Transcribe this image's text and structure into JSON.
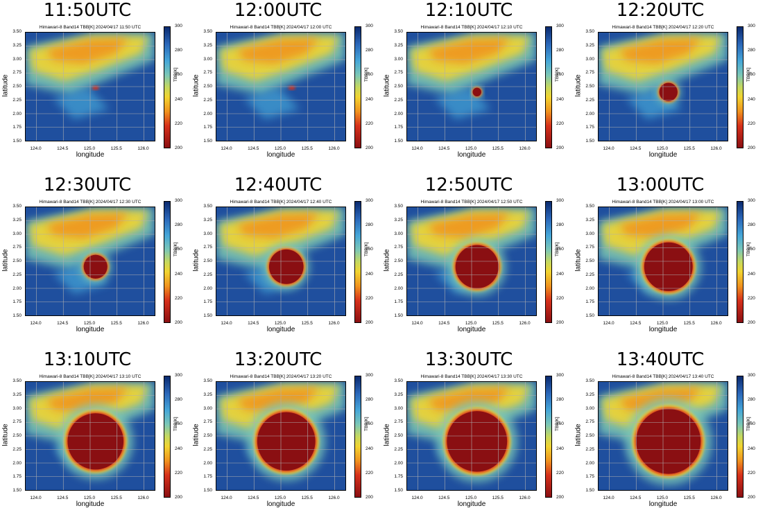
{
  "common": {
    "ylabel": "latitude",
    "xlabel": "longitude",
    "cbar_label": "TBB[K]",
    "xticks": [
      "124.0",
      "124.5",
      "125.0",
      "125.5",
      "126.0"
    ],
    "yticks": [
      "3.50",
      "3.25",
      "3.00",
      "2.75",
      "2.50",
      "2.25",
      "2.00",
      "1.75",
      "1.50"
    ],
    "cbar_ticks": [
      "300",
      "280",
      "260",
      "240",
      "220",
      "200"
    ]
  },
  "panels": [
    {
      "time": "11:50UTC",
      "title": "Himawari-8 Band14 TBB[K] 2024/04/17 11:50 UTC"
    },
    {
      "time": "12:00UTC",
      "title": "Himawari-8 Band14 TBB[K] 2024/04/17 12:00 UTC"
    },
    {
      "time": "12:10UTC",
      "title": "Himawari-8 Band14 TBB[K] 2024/04/17 12:10 UTC"
    },
    {
      "time": "12:20UTC",
      "title": "Himawari-8 Band14 TBB[K] 2024/04/17 12:20 UTC"
    },
    {
      "time": "12:30UTC",
      "title": "Himawari-8 Band14 TBB[K] 2024/04/17 12:30 UTC"
    },
    {
      "time": "12:40UTC",
      "title": "Himawari-8 Band14 TBB[K] 2024/04/17 12:40 UTC"
    },
    {
      "time": "12:50UTC",
      "title": "Himawari-8 Band14 TBB[K] 2024/04/17 12:50 UTC"
    },
    {
      "time": "13:00UTC",
      "title": "Himawari-8 Band14 TBB[K] 2024/04/17 13:00 UTC"
    },
    {
      "time": "13:10UTC",
      "title": "Himawari-8 Band14 TBB[K] 2024/04/17 13:10 UTC"
    },
    {
      "time": "13:20UTC",
      "title": "Himawari-8 Band14 TBB[K] 2024/04/17 13:20 UTC"
    },
    {
      "time": "13:30UTC",
      "title": "Himawari-8 Band14 TBB[K] 2024/04/17 13:30 UTC"
    },
    {
      "time": "13:40UTC",
      "title": "Himawari-8 Band14 TBB[K] 2024/04/17 13:40 UTC"
    }
  ],
  "chart_data": {
    "type": "heatmap",
    "xlim": [
      123.8,
      126.2
    ],
    "ylim": [
      1.5,
      3.5
    ],
    "cbar_range": [
      200,
      300
    ],
    "grid": true,
    "colormap_stops": [
      "#0b2a6e",
      "#2a66b8",
      "#45a6d8",
      "#7cc7b6",
      "#c6d85e",
      "#f1d431",
      "#f0931e",
      "#d6301b",
      "#8a0f12"
    ],
    "storm_center": [
      125.1,
      2.4
    ],
    "storm_radius_deg": [
      0.0,
      0.0,
      0.08,
      0.17,
      0.22,
      0.32,
      0.4,
      0.45,
      0.52,
      0.54,
      0.56,
      0.6
    ]
  }
}
